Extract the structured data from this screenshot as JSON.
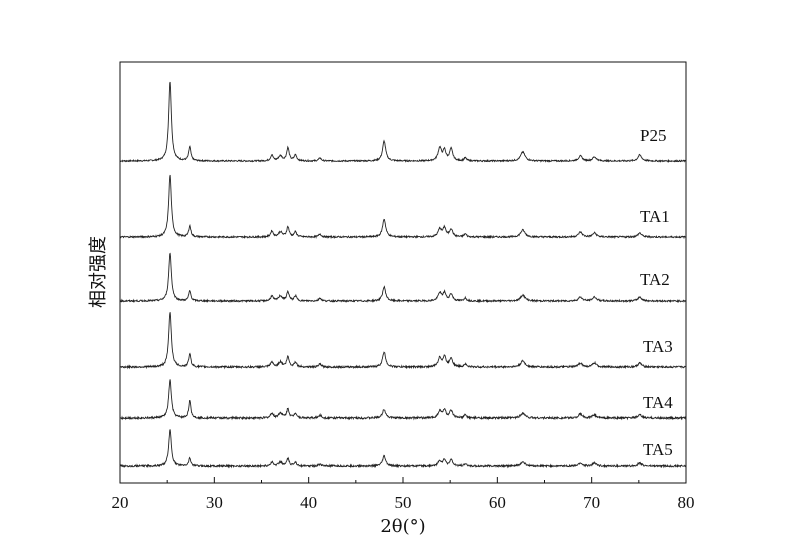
{
  "chart_data": {
    "type": "line",
    "title": "",
    "xlabel": "2θ(°)",
    "ylabel": "相对强度",
    "xlim": [
      20,
      80
    ],
    "xticks": [
      20,
      30,
      40,
      50,
      60,
      70,
      80
    ],
    "grid": false,
    "legend": "none",
    "peak_positions": [
      25.3,
      27.4,
      36.1,
      37.0,
      37.8,
      38.6,
      41.2,
      48.0,
      53.9,
      54.4,
      55.1,
      56.6,
      62.7,
      68.8,
      70.3,
      75.1
    ],
    "series": [
      {
        "name": "P25",
        "peaks": [
          80,
          14,
          6,
          5,
          13,
          6,
          3,
          20,
          13,
          10,
          12,
          3,
          9,
          5,
          4,
          6
        ],
        "noise": 0.7
      },
      {
        "name": "TA1",
        "peaks": [
          62,
          11,
          6,
          5,
          10,
          5,
          3,
          18,
          8,
          9,
          8,
          3,
          7,
          5,
          4,
          4
        ],
        "noise": 0.8
      },
      {
        "name": "TA2",
        "peaks": [
          48,
          10,
          5,
          5,
          9,
          5,
          3,
          14,
          8,
          8,
          7,
          3,
          6,
          4,
          4,
          4
        ],
        "noise": 0.8
      },
      {
        "name": "TA3",
        "peaks": [
          55,
          13,
          5,
          5,
          10,
          5,
          3,
          15,
          9,
          10,
          9,
          3,
          6,
          4,
          4,
          4
        ],
        "noise": 0.9
      },
      {
        "name": "TA4",
        "peaks": [
          38,
          17,
          5,
          5,
          9,
          5,
          3,
          9,
          7,
          8,
          7,
          3,
          5,
          4,
          3,
          3
        ],
        "noise": 1.0
      },
      {
        "name": "TA5",
        "peaks": [
          36,
          8,
          4,
          4,
          7,
          4,
          2,
          10,
          5,
          6,
          6,
          2,
          4,
          3,
          3,
          3
        ],
        "noise": 0.9
      }
    ]
  }
}
